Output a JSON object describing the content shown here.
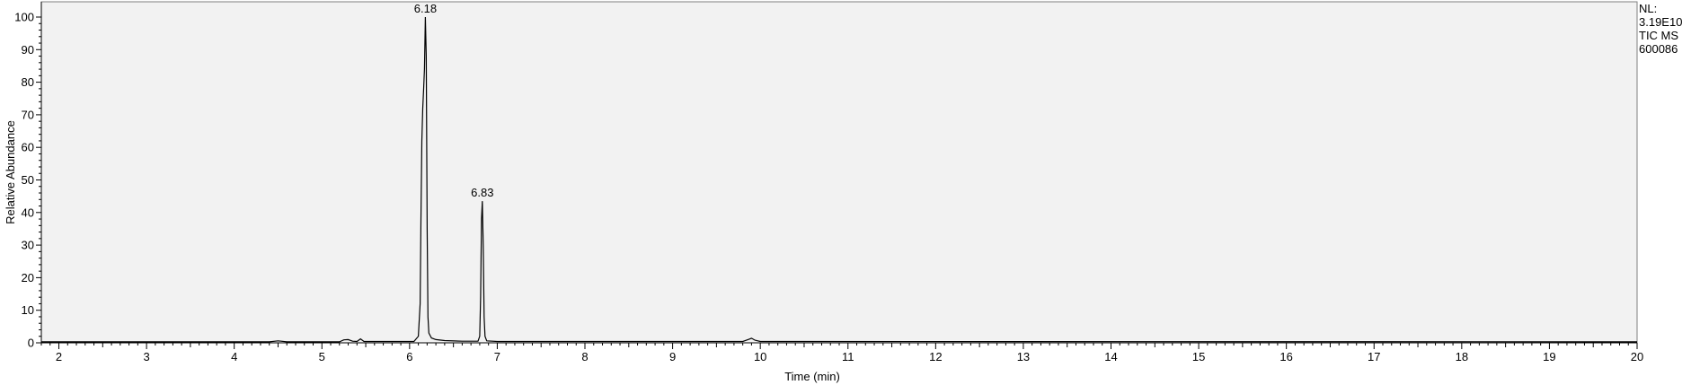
{
  "chart_data": {
    "type": "line",
    "xlabel": "Time (min)",
    "ylabel": "Relative Abundance",
    "xlim": [
      1.8,
      20
    ],
    "ylim": [
      0,
      100
    ],
    "x_ticks": [
      2,
      3,
      4,
      5,
      6,
      7,
      8,
      9,
      10,
      11,
      12,
      13,
      14,
      15,
      16,
      17,
      18,
      19,
      20
    ],
    "y_ticks": [
      0,
      10,
      20,
      30,
      40,
      50,
      60,
      70,
      80,
      90,
      100
    ],
    "grid": false,
    "background_color": "#f2f2f2",
    "line_color": "#000000",
    "peak_labels": [
      {
        "x": 6.18,
        "y": 100,
        "text": "6.18"
      },
      {
        "x": 6.83,
        "y": 43.5,
        "text": "6.83"
      }
    ],
    "info_text": [
      "NL:",
      "3.19E10",
      "TIC  MS",
      "600086"
    ],
    "series": [
      {
        "x": [
          1.8,
          4.4,
          4.5,
          4.6,
          5.2,
          5.25,
          5.3,
          5.35,
          5.4,
          5.44,
          5.48,
          6.05,
          6.1,
          6.12,
          6.13,
          6.14,
          6.15,
          6.16,
          6.17,
          6.18,
          6.19,
          6.2,
          6.21,
          6.22,
          6.25,
          6.3,
          6.4,
          6.6,
          6.78,
          6.8,
          6.81,
          6.82,
          6.83,
          6.84,
          6.85,
          6.86,
          6.88,
          7.0,
          9.8,
          9.86,
          9.9,
          9.94,
          10.0,
          20.0
        ],
        "y": [
          0.3,
          0.3,
          0.6,
          0.3,
          0.3,
          0.9,
          1.0,
          0.5,
          0.4,
          1.2,
          0.4,
          0.4,
          2.0,
          12.0,
          38.0,
          62.0,
          72.0,
          78.0,
          84.0,
          100.0,
          88.0,
          35.0,
          8.0,
          3.0,
          1.5,
          1.0,
          0.7,
          0.5,
          0.5,
          2.0,
          14.0,
          38.0,
          43.5,
          30.0,
          8.0,
          2.0,
          0.6,
          0.4,
          0.4,
          1.0,
          1.4,
          0.8,
          0.4,
          0.3
        ]
      }
    ]
  }
}
